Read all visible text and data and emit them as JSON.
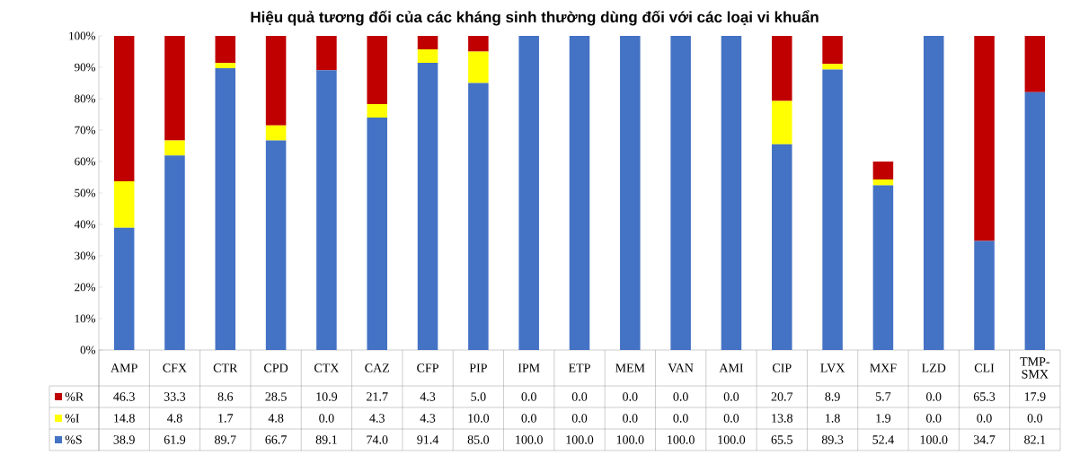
{
  "chart_data": {
    "type": "bar",
    "stacked": true,
    "title": "Hiệu quả tương đối của các kháng sinh thường dùng đối với các loại vi khuẩn",
    "categories": [
      "AMP",
      "CFX",
      "CTR",
      "CPD",
      "CTX",
      "CAZ",
      "CFP",
      "PIP",
      "IPM",
      "ETP",
      "MEM",
      "VAN",
      "AMI",
      "CIP",
      "LVX",
      "MXF",
      "LZD",
      "CLI",
      "TMP-SMX"
    ],
    "series": [
      {
        "name": "%S",
        "color": "#4472c4",
        "values": [
          38.9,
          61.9,
          89.7,
          66.7,
          89.1,
          74.0,
          91.4,
          85.0,
          100.0,
          100.0,
          100.0,
          100.0,
          100.0,
          65.5,
          89.3,
          52.4,
          100.0,
          34.7,
          82.1
        ],
        "value_labels": [
          "38.9",
          "61.9",
          "89.7",
          "66.7",
          "89.1",
          "74.0",
          "91.4",
          "85.0",
          "100.0",
          "100.0",
          "100.0",
          "100.0",
          "100.0",
          "65.5",
          "89.3",
          "52.4",
          "100.0",
          "34.7",
          "82.1"
        ]
      },
      {
        "name": "%I",
        "color": "#ffff00",
        "values": [
          14.8,
          4.8,
          1.7,
          4.8,
          0.0,
          4.3,
          4.3,
          10.0,
          0.0,
          0.0,
          0.0,
          0.0,
          0.0,
          13.8,
          1.8,
          1.9,
          0.0,
          0.0,
          0.0
        ],
        "value_labels": [
          "14.8",
          "4.8",
          "1.7",
          "4.8",
          "0.0",
          "4.3",
          "4.3",
          "10.0",
          "0.0",
          "0.0",
          "0.0",
          "0.0",
          "0.0",
          "13.8",
          "1.8",
          "1.9",
          "0.0",
          "0.0",
          "0.0"
        ]
      },
      {
        "name": "%R",
        "color": "#c00000",
        "values": [
          46.3,
          33.3,
          8.6,
          28.5,
          10.9,
          21.7,
          4.3,
          5.0,
          0.0,
          0.0,
          0.0,
          0.0,
          0.0,
          20.7,
          8.9,
          5.7,
          0.0,
          65.3,
          17.9
        ],
        "value_labels": [
          "46.3",
          "33.3",
          "8.6",
          "28.5",
          "10.9",
          "21.7",
          "4.3",
          "5.0",
          "0.0",
          "0.0",
          "0.0",
          "0.0",
          "0.0",
          "20.7",
          "8.9",
          "5.7",
          "0.0",
          "65.3",
          "17.9"
        ]
      }
    ],
    "ylim": [
      0,
      100
    ],
    "yticks": [
      {
        "value": 0,
        "label": "0%"
      },
      {
        "value": 10,
        "label": "10%"
      },
      {
        "value": 20,
        "label": "20%"
      },
      {
        "value": 30,
        "label": "30%"
      },
      {
        "value": 40,
        "label": "40%"
      },
      {
        "value": 50,
        "label": "50%"
      },
      {
        "value": 60,
        "label": "60%"
      },
      {
        "value": 70,
        "label": "70%"
      },
      {
        "value": 80,
        "label": "80%"
      },
      {
        "value": 90,
        "label": "90%"
      },
      {
        "value": 100,
        "label": "100%"
      }
    ],
    "legend": "bottom"
  }
}
